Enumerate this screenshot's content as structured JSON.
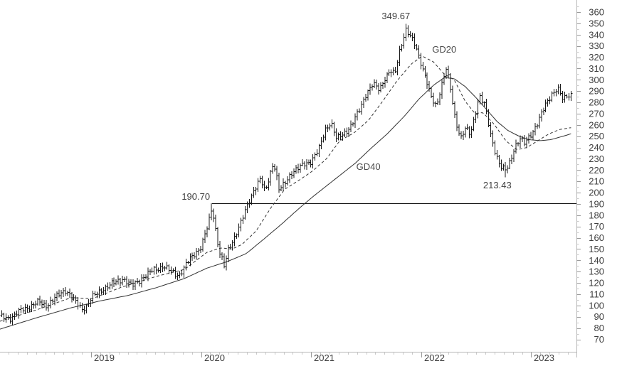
{
  "page": {
    "background": "#ffffff"
  },
  "chart_data": {
    "type": "ohlc-bar",
    "title": "",
    "x_axis": {
      "kind": "time",
      "visible_range_years": [
        2018.17,
        2023.4
      ],
      "year_labels": [
        "2019",
        "2020",
        "2021",
        "2022",
        "2023"
      ],
      "minor_tick": "month"
    },
    "y_axis": {
      "side": "right",
      "min": 70,
      "max": 360,
      "label_step": 10,
      "minor_step": 5,
      "tick_labels": [
        "360",
        "350",
        "340",
        "330",
        "320",
        "310",
        "300",
        "290",
        "280",
        "270",
        "260",
        "250",
        "240",
        "230",
        "220",
        "210",
        "200",
        "190",
        "180",
        "170",
        "160",
        "150",
        "140",
        "130",
        "120",
        "110",
        "100",
        "90",
        "80",
        "70"
      ]
    },
    "colors": {
      "bars": "#1a1a1a",
      "ma_lines": "#333333",
      "level_line": "#111111",
      "axis_line": "#b8b8b8",
      "major_tick": "#9a9a9a",
      "minor_tick": "#c9c9c9",
      "tick_label": "#3d3d3d",
      "annotation": "#3f3f3f"
    },
    "series": [
      {
        "id": "price",
        "type": "ohlc",
        "interval": "weekly",
        "color": "#1a1a1a",
        "anchors_year_close": [
          [
            2018.17,
            90
          ],
          [
            2018.27,
            89
          ],
          [
            2018.37,
            96
          ],
          [
            2018.46,
            100
          ],
          [
            2018.53,
            103
          ],
          [
            2018.59,
            100
          ],
          [
            2018.69,
            108
          ],
          [
            2018.77,
            114
          ],
          [
            2018.85,
            104
          ],
          [
            2018.92,
            97
          ],
          [
            2018.96,
            100
          ],
          [
            2019.0,
            106
          ],
          [
            2019.11,
            115
          ],
          [
            2019.21,
            120
          ],
          [
            2019.29,
            124
          ],
          [
            2019.37,
            117
          ],
          [
            2019.47,
            125
          ],
          [
            2019.56,
            131
          ],
          [
            2019.65,
            135
          ],
          [
            2019.73,
            130
          ],
          [
            2019.8,
            127
          ],
          [
            2019.89,
            140
          ],
          [
            2019.95,
            147
          ],
          [
            2020.0,
            152
          ],
          [
            2020.06,
            170
          ],
          [
            2020.1,
            187
          ],
          [
            2020.16,
            150
          ],
          [
            2020.21,
            134
          ],
          [
            2020.25,
            150
          ],
          [
            2020.3,
            160
          ],
          [
            2020.37,
            175
          ],
          [
            2020.43,
            191
          ],
          [
            2020.49,
            205
          ],
          [
            2020.54,
            212
          ],
          [
            2020.58,
            200
          ],
          [
            2020.62,
            214
          ],
          [
            2020.66,
            228
          ],
          [
            2020.71,
            202
          ],
          [
            2020.76,
            208
          ],
          [
            2020.82,
            218
          ],
          [
            2020.89,
            222
          ],
          [
            2020.95,
            226
          ],
          [
            2021.0,
            228
          ],
          [
            2021.07,
            238
          ],
          [
            2021.13,
            256
          ],
          [
            2021.18,
            263
          ],
          [
            2021.23,
            247
          ],
          [
            2021.29,
            252
          ],
          [
            2021.37,
            260
          ],
          [
            2021.43,
            271
          ],
          [
            2021.5,
            288
          ],
          [
            2021.56,
            296
          ],
          [
            2021.62,
            291
          ],
          [
            2021.67,
            302
          ],
          [
            2021.72,
            308
          ],
          [
            2021.76,
            304
          ],
          [
            2021.81,
            328
          ],
          [
            2021.86,
            345
          ],
          [
            2021.91,
            337
          ],
          [
            2021.95,
            329
          ],
          [
            2022.0,
            315
          ],
          [
            2022.05,
            299
          ],
          [
            2022.09,
            284
          ],
          [
            2022.14,
            276
          ],
          [
            2022.18,
            294
          ],
          [
            2022.23,
            311
          ],
          [
            2022.27,
            289
          ],
          [
            2022.31,
            264
          ],
          [
            2022.36,
            249
          ],
          [
            2022.4,
            257
          ],
          [
            2022.45,
            251
          ],
          [
            2022.49,
            269
          ],
          [
            2022.53,
            287
          ],
          [
            2022.58,
            277
          ],
          [
            2022.63,
            251
          ],
          [
            2022.68,
            234
          ],
          [
            2022.72,
            224
          ],
          [
            2022.77,
            219
          ],
          [
            2022.81,
            227
          ],
          [
            2022.85,
            241
          ],
          [
            2022.9,
            248
          ],
          [
            2022.94,
            243
          ],
          [
            2023.0,
            252
          ],
          [
            2023.05,
            261
          ],
          [
            2023.09,
            269
          ],
          [
            2023.14,
            279
          ],
          [
            2023.19,
            288
          ],
          [
            2023.24,
            293
          ],
          [
            2023.29,
            282
          ],
          [
            2023.33,
            286
          ],
          [
            2023.38,
            288
          ]
        ]
      },
      {
        "id": "gd20",
        "label": "GD20",
        "type": "line",
        "line_style": "dashed",
        "color": "#333333",
        "anchors_year_value": [
          [
            2018.17,
            86
          ],
          [
            2018.5,
            96
          ],
          [
            2018.82,
            107
          ],
          [
            2019.01,
            106
          ],
          [
            2019.27,
            116
          ],
          [
            2019.6,
            126
          ],
          [
            2019.85,
            132
          ],
          [
            2020.05,
            147
          ],
          [
            2020.18,
            151
          ],
          [
            2020.28,
            150
          ],
          [
            2020.37,
            154
          ],
          [
            2020.5,
            166
          ],
          [
            2020.63,
            186
          ],
          [
            2020.76,
            203
          ],
          [
            2020.89,
            211
          ],
          [
            2021.01,
            219
          ],
          [
            2021.14,
            230
          ],
          [
            2021.26,
            246
          ],
          [
            2021.39,
            253
          ],
          [
            2021.52,
            264
          ],
          [
            2021.65,
            281
          ],
          [
            2021.78,
            299
          ],
          [
            2021.91,
            314
          ],
          [
            2022.01,
            321
          ],
          [
            2022.11,
            316
          ],
          [
            2022.21,
            305
          ],
          [
            2022.3,
            300
          ],
          [
            2022.4,
            281
          ],
          [
            2022.49,
            270
          ],
          [
            2022.56,
            271
          ],
          [
            2022.66,
            261
          ],
          [
            2022.77,
            246
          ],
          [
            2022.87,
            238
          ],
          [
            2022.96,
            240
          ],
          [
            2023.06,
            246
          ],
          [
            2023.16,
            252
          ],
          [
            2023.26,
            256
          ],
          [
            2023.39,
            258
          ]
        ]
      },
      {
        "id": "gd40",
        "label": "GD40",
        "type": "line",
        "line_style": "solid",
        "color": "#333333",
        "anchors_year_value": [
          [
            2018.17,
            79
          ],
          [
            2018.5,
            89
          ],
          [
            2018.82,
            98
          ],
          [
            2019.08,
            104
          ],
          [
            2019.34,
            109
          ],
          [
            2019.6,
            116
          ],
          [
            2019.85,
            124
          ],
          [
            2020.05,
            133
          ],
          [
            2020.24,
            139
          ],
          [
            2020.41,
            146
          ],
          [
            2020.56,
            158
          ],
          [
            2020.73,
            172
          ],
          [
            2020.89,
            186
          ],
          [
            2021.01,
            196
          ],
          [
            2021.14,
            206
          ],
          [
            2021.27,
            216
          ],
          [
            2021.4,
            226
          ],
          [
            2021.53,
            238
          ],
          [
            2021.69,
            252
          ],
          [
            2021.85,
            268
          ],
          [
            2021.98,
            283
          ],
          [
            2022.11,
            295
          ],
          [
            2022.21,
            302
          ],
          [
            2022.3,
            301
          ],
          [
            2022.4,
            294
          ],
          [
            2022.5,
            284
          ],
          [
            2022.6,
            273
          ],
          [
            2022.69,
            263
          ],
          [
            2022.79,
            255
          ],
          [
            2022.89,
            250
          ],
          [
            2022.98,
            247
          ],
          [
            2023.08,
            246
          ],
          [
            2023.18,
            247
          ],
          [
            2023.29,
            250
          ],
          [
            2023.39,
            253
          ]
        ]
      }
    ],
    "level_line": {
      "value": 190.7,
      "start_year": 2020.1,
      "extends_to": "right-edge",
      "color": "#111111"
    },
    "annotations": [
      {
        "id": "peak",
        "text": "349.67",
        "year": 2021.86,
        "value": 349.67,
        "placement": "above-left"
      },
      {
        "id": "trough",
        "text": "213.43",
        "year": 2022.77,
        "value": 213.43,
        "placement": "below"
      },
      {
        "id": "level",
        "text": "190.70",
        "year": 2020.1,
        "value": 190.7,
        "placement": "left-of-line"
      },
      {
        "id": "gd20-label",
        "text": "GD20",
        "year": 2022.1,
        "value": 326,
        "placement": "free"
      },
      {
        "id": "gd40-label",
        "text": "GD40",
        "year": 2021.41,
        "value": 222,
        "placement": "free"
      }
    ],
    "key_points": {
      "all_time_high": 349.67,
      "late_low": 213.43,
      "resistance_level": 190.7
    }
  }
}
